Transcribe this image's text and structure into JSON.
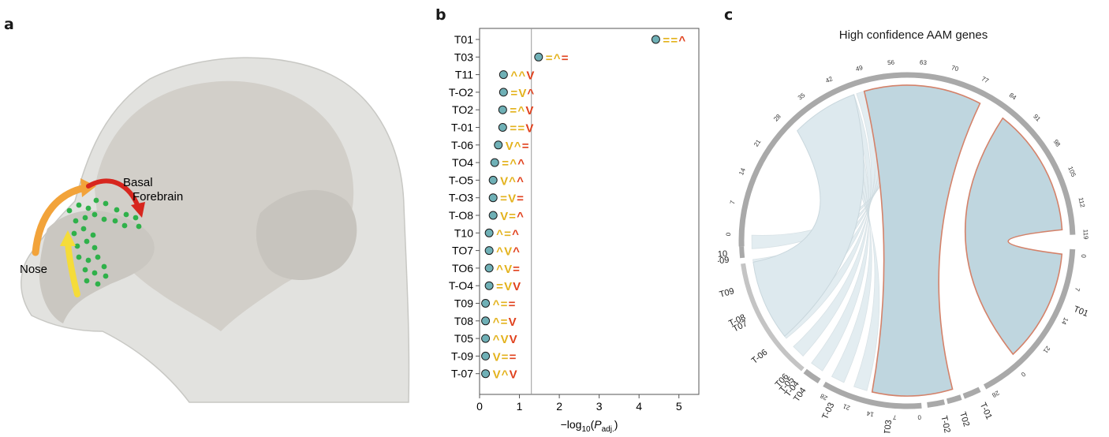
{
  "panel_a": {
    "letter": "a",
    "labels": {
      "basal": "Basal",
      "forebrain": "Forebrain",
      "nose": "Nose"
    },
    "colors": {
      "head": "#e2e2df",
      "brain": "#cfccc6",
      "dots": "#2fb14a",
      "arrow_orange": "#f2a33a",
      "arrow_yellow": "#f5dc3a",
      "arrow_red": "#d7261e"
    }
  },
  "panel_b": {
    "letter": "b",
    "colors": {
      "upper": "#e3b21c",
      "lower": "#e0411d",
      "point_fill": "#6fb0b6"
    }
  },
  "panel_c": {
    "letter": "c",
    "title": "High confidence AAM genes",
    "ticks_main": [
      "0",
      "7",
      "14",
      "21",
      "28",
      "35",
      "42",
      "49",
      "56",
      "63",
      "70",
      "77",
      "84",
      "91",
      "98",
      "105",
      "112",
      "119"
    ],
    "ticks_t01": [
      "0",
      "7",
      "14",
      "21",
      "0",
      "28"
    ],
    "ticks_t03": [
      "28",
      "21",
      "14",
      "7",
      "0"
    ],
    "labels": [
      "T10",
      "T-09",
      "T09",
      "T-08",
      "T07",
      "T-06",
      "T06",
      "T-05",
      "T-04",
      "T04",
      "T-03",
      "T03",
      "T-02",
      "T02",
      "T-01",
      "T01"
    ],
    "colors": {
      "ribbon_main": "#bfd6df",
      "ribbon_light": "#dde9ee",
      "outline": "#d4826a",
      "ring": "#a9a9a9"
    }
  },
  "chart_data": {
    "type": "scatter",
    "xlabel": "−log10(Padj.)",
    "xlim": [
      0,
      5.5
    ],
    "xticks": [
      "0",
      "1",
      "2",
      "3",
      "4",
      "5"
    ],
    "threshold": 1.3,
    "points": [
      {
        "label": "T01",
        "x": 4.42,
        "annotation": [
          "=",
          "=",
          "^"
        ]
      },
      {
        "label": "T03",
        "x": 1.48,
        "annotation": [
          "=",
          "^",
          "="
        ]
      },
      {
        "label": "T11",
        "x": 0.6,
        "annotation": [
          "^",
          "^",
          "v"
        ]
      },
      {
        "label": "T-O2",
        "x": 0.6,
        "annotation": [
          "=",
          "v",
          "^"
        ]
      },
      {
        "label": "TO2",
        "x": 0.58,
        "annotation": [
          "=",
          "^",
          "v"
        ]
      },
      {
        "label": "T-01",
        "x": 0.58,
        "annotation": [
          "=",
          "=",
          "v"
        ]
      },
      {
        "label": "T-06",
        "x": 0.47,
        "annotation": [
          "v",
          "^",
          "="
        ]
      },
      {
        "label": "TO4",
        "x": 0.38,
        "annotation": [
          "=",
          "^",
          "^"
        ]
      },
      {
        "label": "T-O5",
        "x": 0.34,
        "annotation": [
          "v",
          "^",
          "^"
        ]
      },
      {
        "label": "T-O3",
        "x": 0.34,
        "annotation": [
          "=",
          "v",
          "="
        ]
      },
      {
        "label": "T-O8",
        "x": 0.34,
        "annotation": [
          "v",
          "=",
          "^"
        ]
      },
      {
        "label": "T10",
        "x": 0.24,
        "annotation": [
          "^",
          "=",
          "^"
        ]
      },
      {
        "label": "TO7",
        "x": 0.24,
        "annotation": [
          "^",
          "v",
          "^"
        ]
      },
      {
        "label": "TO6",
        "x": 0.24,
        "annotation": [
          "^",
          "v",
          "="
        ]
      },
      {
        "label": "T-O4",
        "x": 0.24,
        "annotation": [
          "=",
          "v",
          "v"
        ]
      },
      {
        "label": "T09",
        "x": 0.15,
        "annotation": [
          "^",
          "=",
          "="
        ]
      },
      {
        "label": "T08",
        "x": 0.15,
        "annotation": [
          "^",
          "=",
          "v"
        ]
      },
      {
        "label": "T05",
        "x": 0.15,
        "annotation": [
          "^",
          "v",
          "v"
        ]
      },
      {
        "label": "T-09",
        "x": 0.15,
        "annotation": [
          "v",
          "=",
          "="
        ]
      },
      {
        "label": "T-07",
        "x": 0.15,
        "annotation": [
          "v",
          "^",
          "v"
        ]
      }
    ]
  }
}
